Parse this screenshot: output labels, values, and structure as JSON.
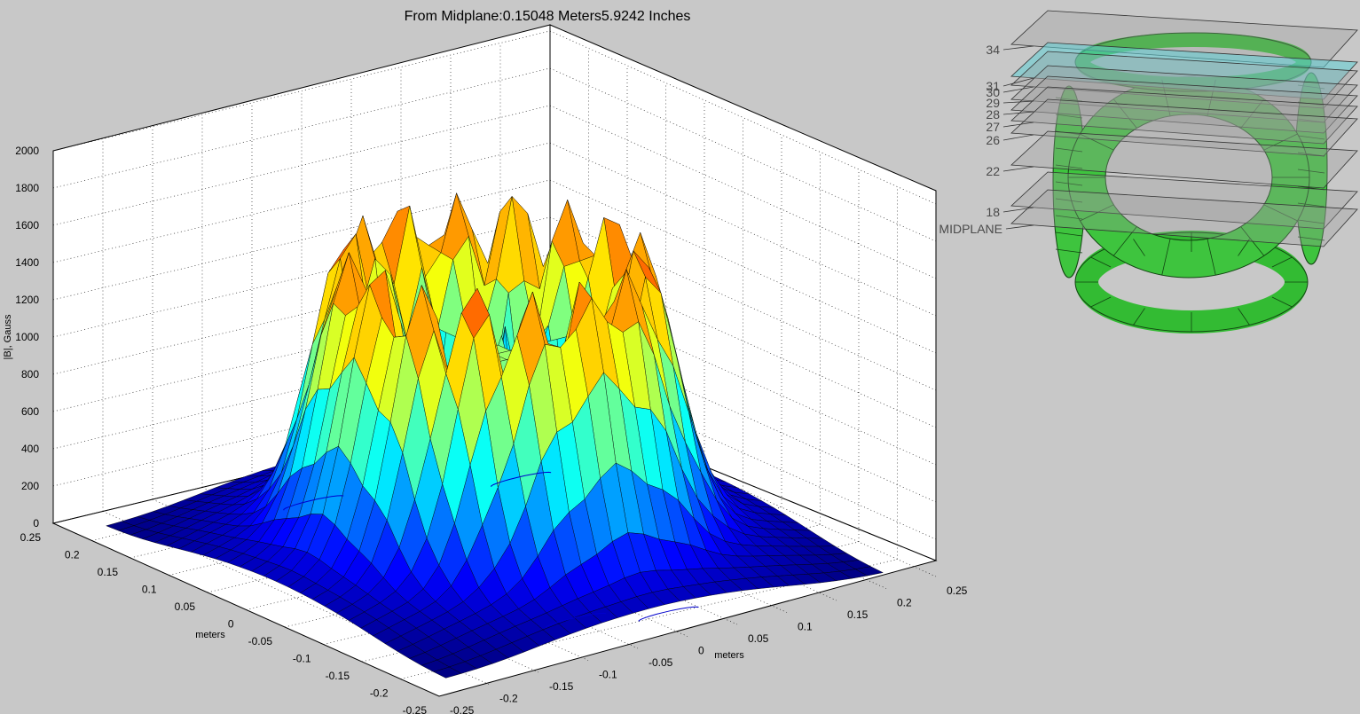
{
  "chart_data": {
    "type": "surface",
    "title": "From Midplane:0.15048 Meters5.9242 Inches",
    "zlabel": "|B|, Gauss",
    "xlabel": "meters",
    "ylabel": "meters",
    "zlim": [
      0,
      2000
    ],
    "z_ticks": [
      "0",
      "200",
      "400",
      "600",
      "800",
      "1000",
      "1200",
      "1400",
      "1600",
      "1800",
      "2000"
    ],
    "x_ticks": [
      "-0.25",
      "-0.2",
      "-0.15",
      "-0.1",
      "-0.05",
      "0",
      "0.05",
      "0.1",
      "0.15",
      "0.2",
      "0.25"
    ],
    "y_ticks": [
      "0.25",
      "0.2",
      "0.15",
      "0.1",
      "0.05",
      "0",
      "-0.05",
      "-0.1",
      "-0.15",
      "-0.2",
      "-0.25"
    ],
    "xlim": [
      -0.25,
      0.25
    ],
    "ylim": [
      -0.25,
      0.25
    ],
    "grid": true,
    "colormap": "jet",
    "surface_model": {
      "ring_radius_m": 0.115,
      "ring_width_m": 0.045,
      "ring_peak_gauss": 1650,
      "lobe_count": 16,
      "lobe_amplitude_gauss": 500,
      "inner_floor_gauss": 750,
      "grid_size": 28
    }
  },
  "inset": {
    "plane_labels": [
      "34",
      "31",
      "30",
      "29",
      "28",
      "27",
      "26",
      "22",
      "18",
      "MIDPLANE"
    ],
    "coil_color": "#33cc33",
    "highlight_plane_color": "#5fd0d6"
  }
}
